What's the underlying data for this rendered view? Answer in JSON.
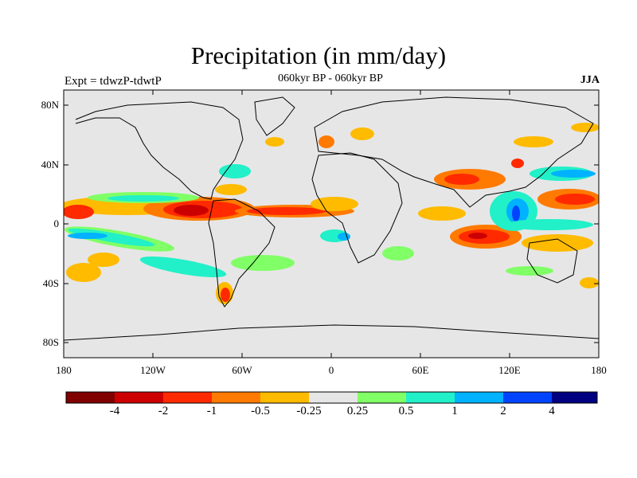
{
  "title": "Precipitation (in mm/day)",
  "left_label": "Expt = tdwzP-tdwtP",
  "center_label": "060kyr BP - 060kyr BP",
  "right_label": "JJA",
  "y_ticks": [
    "80N",
    "40N",
    "0",
    "40S",
    "80S"
  ],
  "x_ticks": [
    "180",
    "120W",
    "60W",
    "0",
    "60E",
    "120E",
    "180"
  ],
  "colorbar": {
    "colors": [
      "#800000",
      "#cc0000",
      "#ff2a00",
      "#ff7a00",
      "#ffbb00",
      "#e6e6e6",
      "#80ff66",
      "#22f0c8",
      "#00b2ff",
      "#0044ff",
      "#000080"
    ],
    "labels": [
      "-4",
      "-2",
      "-1",
      "-0.5",
      "-0.25",
      "0.25",
      "0.5",
      "1",
      "2",
      "4"
    ]
  },
  "colors": {
    "ocean_background": "#e6e6e6",
    "coastline": "#000000"
  }
}
